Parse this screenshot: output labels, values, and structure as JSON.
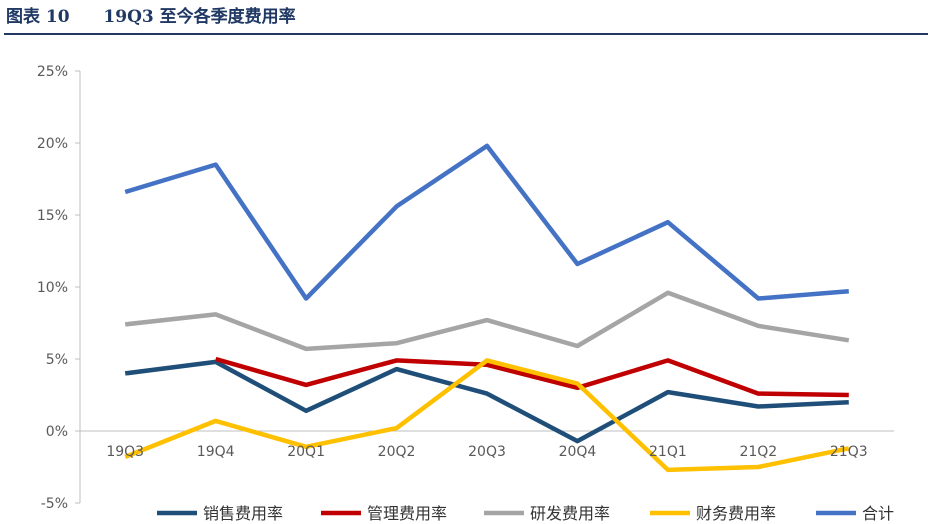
{
  "header": {
    "figure_label": "图表 10",
    "title": "19Q3 至今各季度费用率"
  },
  "chart_data": {
    "type": "line",
    "title": "19Q3 至今各季度费用率",
    "categories": [
      "19Q3",
      "19Q4",
      "20Q1",
      "20Q2",
      "20Q3",
      "20Q4",
      "21Q1",
      "21Q2",
      "21Q3"
    ],
    "ylim": [
      -5,
      25
    ],
    "yticks": [
      -5,
      0,
      5,
      10,
      15,
      20,
      25
    ],
    "ytick_labels": [
      "-5%",
      "0%",
      "5%",
      "10%",
      "15%",
      "20%",
      "25%"
    ],
    "grid": false,
    "legend_position": "bottom",
    "series": [
      {
        "name": "销售费用率",
        "color": "#1f4e79",
        "values": [
          4.0,
          4.8,
          1.4,
          4.3,
          2.6,
          -0.7,
          2.7,
          1.7,
          2.0
        ]
      },
      {
        "name": "管理费用率",
        "color": "#c00000",
        "values": [
          null,
          5.0,
          3.2,
          4.9,
          4.6,
          3.0,
          4.9,
          2.6,
          2.5
        ]
      },
      {
        "name": "研发费用率",
        "color": "#a5a5a5",
        "values": [
          7.4,
          8.1,
          5.7,
          6.1,
          7.7,
          5.9,
          9.6,
          7.3,
          6.3
        ]
      },
      {
        "name": "财务费用率",
        "color": "#ffc000",
        "values": [
          -1.8,
          0.7,
          -1.1,
          0.2,
          4.9,
          3.3,
          -2.7,
          -2.5,
          -1.2
        ]
      },
      {
        "name": "合计",
        "color": "#4472c4",
        "values": [
          16.6,
          18.5,
          9.2,
          15.6,
          19.8,
          11.6,
          14.5,
          9.2,
          9.7
        ]
      }
    ]
  }
}
